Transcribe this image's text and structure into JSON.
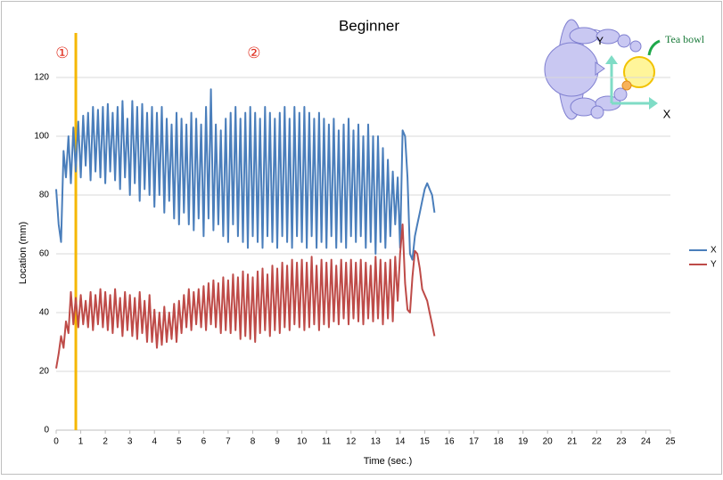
{
  "chart_data": {
    "type": "line",
    "title": "Beginner",
    "x_label": "Time (sec.)",
    "y_label": "Location (mm)",
    "xlim": [
      0,
      25
    ],
    "xticks": [
      0,
      1,
      2,
      3,
      4,
      5,
      6,
      7,
      8,
      9,
      10,
      11,
      12,
      13,
      14,
      15,
      16,
      17,
      18,
      19,
      20,
      21,
      22,
      23,
      24,
      25
    ],
    "ylim": [
      0,
      140
    ],
    "yticks": [
      0,
      20,
      40,
      60,
      80,
      100,
      120
    ],
    "grid": true,
    "legend": "right",
    "x": [
      0,
      0.1,
      0.2,
      0.3,
      0.4,
      0.5,
      0.6,
      0.7,
      0.8,
      0.9,
      1,
      1.1,
      1.2,
      1.3,
      1.4,
      1.5,
      1.6,
      1.7,
      1.8,
      1.9,
      2,
      2.1,
      2.2,
      2.3,
      2.4,
      2.5,
      2.6,
      2.7,
      2.8,
      2.9,
      3,
      3.1,
      3.2,
      3.3,
      3.4,
      3.5,
      3.6,
      3.7,
      3.8,
      3.9,
      4,
      4.1,
      4.2,
      4.3,
      4.4,
      4.5,
      4.6,
      4.7,
      4.8,
      4.9,
      5,
      5.1,
      5.2,
      5.3,
      5.4,
      5.5,
      5.6,
      5.7,
      5.8,
      5.9,
      6,
      6.1,
      6.2,
      6.3,
      6.4,
      6.5,
      6.6,
      6.7,
      6.8,
      6.9,
      7,
      7.1,
      7.2,
      7.3,
      7.4,
      7.5,
      7.6,
      7.7,
      7.8,
      7.9,
      8,
      8.1,
      8.2,
      8.3,
      8.4,
      8.5,
      8.6,
      8.7,
      8.8,
      8.9,
      9,
      9.1,
      9.2,
      9.3,
      9.4,
      9.5,
      9.6,
      9.7,
      9.8,
      9.9,
      10,
      10.1,
      10.2,
      10.3,
      10.4,
      10.5,
      10.6,
      10.7,
      10.8,
      10.9,
      11,
      11.1,
      11.2,
      11.3,
      11.4,
      11.5,
      11.6,
      11.7,
      11.8,
      11.9,
      12,
      12.1,
      12.2,
      12.3,
      12.4,
      12.5,
      12.6,
      12.7,
      12.8,
      12.9,
      13,
      13.1,
      13.2,
      13.3,
      13.4,
      13.5,
      13.6,
      13.7,
      13.8,
      13.9,
      14,
      14.1,
      14.2,
      14.3,
      14.4,
      14.5,
      14.6,
      14.7,
      14.8,
      14.9,
      15,
      15.1,
      15.2,
      15.3,
      15.4
    ],
    "series": [
      {
        "name": "X",
        "color": "#4a7ebb",
        "values": [
          82,
          70,
          64,
          95,
          86,
          100,
          84,
          103,
          88,
          105,
          86,
          107,
          90,
          108,
          85,
          110,
          88,
          109,
          86,
          110,
          84,
          111,
          88,
          108,
          85,
          110,
          82,
          112,
          86,
          106,
          80,
          112,
          84,
          110,
          78,
          111,
          82,
          108,
          80,
          110,
          76,
          108,
          80,
          110,
          74,
          106,
          78,
          104,
          72,
          108,
          70,
          106,
          74,
          104,
          70,
          108,
          68,
          106,
          72,
          104,
          66,
          110,
          72,
          116,
          68,
          104,
          70,
          102,
          66,
          106,
          64,
          108,
          70,
          110,
          66,
          106,
          64,
          108,
          62,
          110,
          66,
          108,
          64,
          106,
          62,
          110,
          66,
          108,
          64,
          106,
          62,
          108,
          66,
          110,
          64,
          106,
          62,
          110,
          66,
          108,
          64,
          110,
          62,
          108,
          66,
          106,
          62,
          108,
          64,
          106,
          62,
          104,
          66,
          106,
          62,
          102,
          64,
          104,
          62,
          106,
          66,
          102,
          64,
          104,
          66,
          100,
          62,
          104,
          64,
          100,
          60,
          100,
          64,
          96,
          62,
          92,
          66,
          88,
          70,
          86,
          62,
          102,
          100,
          86,
          60,
          58,
          66,
          70,
          74,
          78,
          82,
          84,
          82,
          80,
          74
        ]
      },
      {
        "name": "Y",
        "color": "#be4b48",
        "values": [
          21,
          26,
          32,
          28,
          37,
          33,
          47,
          36,
          45,
          35,
          46,
          36,
          44,
          35,
          47,
          34,
          46,
          36,
          48,
          35,
          47,
          34,
          46,
          33,
          48,
          35,
          45,
          32,
          47,
          34,
          46,
          32,
          45,
          31,
          47,
          33,
          44,
          30,
          46,
          30,
          41,
          28,
          40,
          29,
          42,
          30,
          40,
          31,
          43,
          30,
          44,
          33,
          46,
          35,
          48,
          34,
          47,
          36,
          48,
          35,
          49,
          34,
          50,
          36,
          51,
          35,
          50,
          33,
          52,
          34,
          51,
          33,
          53,
          34,
          52,
          31,
          54,
          32,
          53,
          31,
          52,
          30,
          54,
          33,
          55,
          34,
          53,
          32,
          56,
          34,
          55,
          33,
          57,
          35,
          56,
          34,
          58,
          36,
          57,
          35,
          58,
          34,
          57,
          35,
          59,
          36,
          56,
          34,
          58,
          36,
          57,
          35,
          58,
          37,
          56,
          36,
          58,
          38,
          57,
          36,
          58,
          38,
          57,
          37,
          58,
          36,
          57,
          38,
          56,
          37,
          59,
          38,
          58,
          36,
          57,
          38,
          58,
          37,
          59,
          44,
          60,
          70,
          50,
          41,
          40,
          52,
          61,
          60,
          55,
          48,
          46,
          44,
          40,
          36,
          32
        ]
      }
    ],
    "vlines": [
      {
        "x": 0.8,
        "color": "#f5b700"
      }
    ],
    "annotations": [
      {
        "text": "①",
        "x": 0.25,
        "y": 128
      },
      {
        "text": "②",
        "x": 8.05,
        "y": 128
      }
    ],
    "inset": {
      "y_axis": "Y",
      "x_axis": "X",
      "object": "Tea bowl"
    }
  }
}
